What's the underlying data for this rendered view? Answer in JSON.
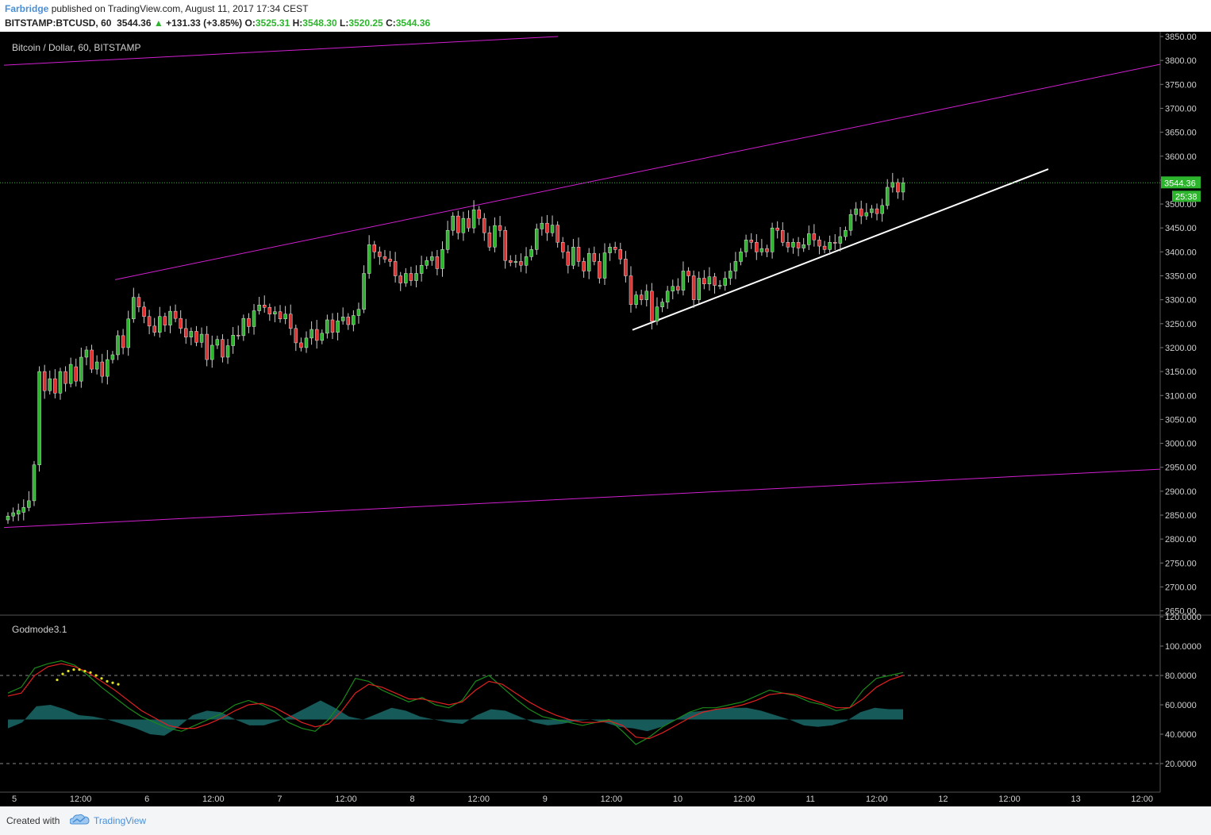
{
  "header": {
    "author": "Farbridge",
    "published": "published on TradingView.com, August 11, 2017 17:34 CEST",
    "symbol_line": "BITSTAMP:BTCUSD, 60",
    "last": "3544.36",
    "change_arrow": "▲",
    "change": "+131.33 (+3.85%)",
    "o_label": "O:",
    "o": "3525.31",
    "h_label": "H:",
    "h": "3548.30",
    "l_label": "L:",
    "l": "3520.25",
    "c_label": "C:",
    "c": "3544.36"
  },
  "footer": {
    "created": "Created with",
    "brand": "TradingView"
  },
  "colors": {
    "background": "#000000",
    "up": "#2db52d",
    "down": "#e03030",
    "channel": "#d020d0",
    "trendline": "#ffffff",
    "price_line": "#2db52d",
    "osc_green": "#1a8a1a",
    "osc_red": "#e02020",
    "osc_fill": "#1a6a6a",
    "dots": "#e0e020"
  },
  "chart_data": [
    {
      "type": "candlestick",
      "title": "Bitcoin / Dollar, 60, BITSTAMP",
      "ylim": [
        2650,
        3850
      ],
      "y_ticks": [
        "3850.00",
        "3800.00",
        "3750.00",
        "3700.00",
        "3650.00",
        "3600.00",
        "3550.00",
        "3500.00",
        "3450.00",
        "3400.00",
        "3350.00",
        "3300.00",
        "3250.00",
        "3200.00",
        "3150.00",
        "3100.00",
        "3050.00",
        "3000.00",
        "2950.00",
        "2900.00",
        "2850.00",
        "2800.00",
        "2750.00",
        "2700.00",
        "2650.00"
      ],
      "x_ticks": [
        "5",
        "12:00",
        "6",
        "12:00",
        "7",
        "12:00",
        "8",
        "12:00",
        "9",
        "12:00",
        "10",
        "12:00",
        "11",
        "12:00",
        "12",
        "12:00",
        "13",
        "12:00"
      ],
      "last_price_label": "3544.36",
      "countdown_label": "25:38",
      "last_price": 3544.36,
      "bars_hourly_open_close": [
        [
          2840,
          2848
        ],
        [
          2848,
          2855
        ],
        [
          2852,
          2860
        ],
        [
          2856,
          2866
        ],
        [
          2866,
          2880
        ],
        [
          2880,
          2955
        ],
        [
          2955,
          3150
        ],
        [
          3150,
          3110
        ],
        [
          3110,
          3135
        ],
        [
          3135,
          3105
        ],
        [
          3105,
          3150
        ],
        [
          3150,
          3125
        ],
        [
          3125,
          3165
        ],
        [
          3160,
          3130
        ],
        [
          3130,
          3180
        ],
        [
          3180,
          3195
        ],
        [
          3195,
          3155
        ],
        [
          3155,
          3170
        ],
        [
          3170,
          3140
        ],
        [
          3140,
          3175
        ],
        [
          3175,
          3185
        ],
        [
          3185,
          3225
        ],
        [
          3225,
          3200
        ],
        [
          3200,
          3260
        ],
        [
          3260,
          3305
        ],
        [
          3305,
          3285
        ],
        [
          3285,
          3265
        ],
        [
          3265,
          3245
        ],
        [
          3245,
          3232
        ],
        [
          3232,
          3265
        ],
        [
          3265,
          3247
        ],
        [
          3247,
          3276
        ],
        [
          3276,
          3261
        ],
        [
          3261,
          3240
        ],
        [
          3240,
          3222
        ],
        [
          3222,
          3234
        ],
        [
          3234,
          3211
        ],
        [
          3211,
          3228
        ],
        [
          3228,
          3175
        ],
        [
          3175,
          3205
        ],
        [
          3205,
          3217
        ],
        [
          3217,
          3180
        ],
        [
          3180,
          3204
        ],
        [
          3204,
          3226
        ],
        [
          3226,
          3225
        ],
        [
          3225,
          3261
        ],
        [
          3261,
          3244
        ],
        [
          3244,
          3277
        ],
        [
          3277,
          3289
        ],
        [
          3289,
          3284
        ],
        [
          3284,
          3270
        ],
        [
          3270,
          3275
        ],
        [
          3275,
          3260
        ],
        [
          3260,
          3270
        ],
        [
          3270,
          3240
        ],
        [
          3240,
          3210
        ],
        [
          3210,
          3200
        ],
        [
          3200,
          3220
        ],
        [
          3220,
          3238
        ],
        [
          3238,
          3215
        ],
        [
          3215,
          3230
        ],
        [
          3230,
          3258
        ],
        [
          3258,
          3232
        ],
        [
          3232,
          3256
        ],
        [
          3256,
          3264
        ],
        [
          3264,
          3248
        ],
        [
          3248,
          3267
        ],
        [
          3267,
          3280
        ],
        [
          3280,
          3355
        ],
        [
          3355,
          3415
        ],
        [
          3415,
          3400
        ],
        [
          3400,
          3390
        ],
        [
          3390,
          3385
        ],
        [
          3385,
          3380
        ],
        [
          3380,
          3350
        ],
        [
          3350,
          3335
        ],
        [
          3335,
          3355
        ],
        [
          3355,
          3340
        ],
        [
          3340,
          3355
        ],
        [
          3355,
          3372
        ],
        [
          3372,
          3382
        ],
        [
          3382,
          3390
        ],
        [
          3390,
          3365
        ],
        [
          3365,
          3405
        ],
        [
          3405,
          3445
        ],
        [
          3445,
          3475
        ],
        [
          3475,
          3440
        ],
        [
          3440,
          3470
        ],
        [
          3470,
          3450
        ],
        [
          3450,
          3488
        ],
        [
          3488,
          3470
        ],
        [
          3470,
          3440
        ],
        [
          3440,
          3410
        ],
        [
          3410,
          3455
        ],
        [
          3455,
          3445
        ],
        [
          3445,
          3382
        ],
        [
          3382,
          3378
        ],
        [
          3378,
          3380
        ],
        [
          3380,
          3372
        ],
        [
          3372,
          3390
        ],
        [
          3390,
          3405
        ],
        [
          3405,
          3448
        ],
        [
          3448,
          3460
        ],
        [
          3460,
          3440
        ],
        [
          3440,
          3456
        ],
        [
          3456,
          3420
        ],
        [
          3420,
          3400
        ],
        [
          3400,
          3372
        ],
        [
          3372,
          3410
        ],
        [
          3410,
          3380
        ],
        [
          3380,
          3360
        ],
        [
          3360,
          3397
        ],
        [
          3397,
          3380
        ],
        [
          3380,
          3345
        ],
        [
          3345,
          3398
        ],
        [
          3398,
          3410
        ],
        [
          3410,
          3405
        ],
        [
          3405,
          3385
        ],
        [
          3385,
          3350
        ],
        [
          3350,
          3290
        ],
        [
          3290,
          3310
        ],
        [
          3310,
          3300
        ],
        [
          3300,
          3318
        ],
        [
          3318,
          3255
        ],
        [
          3255,
          3285
        ],
        [
          3285,
          3295
        ],
        [
          3295,
          3318
        ],
        [
          3318,
          3328
        ],
        [
          3328,
          3320
        ],
        [
          3320,
          3360
        ],
        [
          3360,
          3350
        ],
        [
          3350,
          3300
        ],
        [
          3300,
          3345
        ],
        [
          3345,
          3333
        ],
        [
          3333,
          3348
        ],
        [
          3348,
          3330
        ],
        [
          3330,
          3330
        ],
        [
          3330,
          3345
        ],
        [
          3345,
          3360
        ],
        [
          3360,
          3380
        ],
        [
          3380,
          3400
        ],
        [
          3400,
          3425
        ],
        [
          3425,
          3420
        ],
        [
          3420,
          3400
        ],
        [
          3400,
          3407
        ],
        [
          3407,
          3400
        ],
        [
          3400,
          3450
        ],
        [
          3450,
          3445
        ],
        [
          3445,
          3420
        ],
        [
          3420,
          3410
        ],
        [
          3410,
          3420
        ],
        [
          3420,
          3408
        ],
        [
          3408,
          3415
        ],
        [
          3415,
          3438
        ],
        [
          3438,
          3425
        ],
        [
          3425,
          3412
        ],
        [
          3412,
          3405
        ],
        [
          3405,
          3420
        ],
        [
          3420,
          3418
        ],
        [
          3418,
          3432
        ],
        [
          3432,
          3445
        ],
        [
          3445,
          3478
        ],
        [
          3478,
          3490
        ],
        [
          3490,
          3475
        ],
        [
          3475,
          3482
        ],
        [
          3482,
          3490
        ],
        [
          3490,
          3480
        ],
        [
          3480,
          3497
        ],
        [
          3497,
          3535
        ],
        [
          3535,
          3545
        ],
        [
          3545,
          3525
        ],
        [
          3525,
          3544.36
        ]
      ],
      "annotations": [
        {
          "name": "channel-upper",
          "type": "line"
        },
        {
          "name": "channel-upper-outer",
          "type": "line"
        },
        {
          "name": "channel-lower",
          "type": "line"
        },
        {
          "name": "support-trendline",
          "type": "line"
        }
      ]
    },
    {
      "type": "line",
      "title": "Godmode3.1",
      "ylim": [
        0,
        120
      ],
      "y_ticks": [
        "120.0000",
        "100.0000",
        "80.0000",
        "60.0000",
        "40.0000",
        "20.0000"
      ],
      "levels": [
        80,
        20
      ],
      "series": [
        {
          "values": [
            68,
            72,
            85,
            88,
            90,
            87,
            80,
            72,
            65,
            58,
            52,
            48,
            44,
            42,
            46,
            50,
            54,
            60,
            63,
            60,
            55,
            48,
            44,
            42,
            50,
            62,
            78,
            76,
            70,
            66,
            62,
            65,
            60,
            58,
            63,
            76,
            80,
            72,
            64,
            57,
            52,
            50,
            48,
            46,
            48,
            50,
            42,
            33,
            38,
            45,
            50,
            55,
            58,
            58,
            60,
            62,
            66,
            70,
            68,
            66,
            62,
            60,
            56,
            58,
            70,
            78,
            80,
            82
          ]
        },
        {
          "values": [
            66,
            68,
            80,
            86,
            88,
            86,
            82,
            76,
            70,
            63,
            56,
            51,
            46,
            44,
            44,
            47,
            51,
            56,
            60,
            61,
            58,
            53,
            48,
            45,
            47,
            56,
            68,
            74,
            72,
            68,
            64,
            64,
            62,
            60,
            62,
            70,
            76,
            74,
            68,
            62,
            57,
            53,
            50,
            48,
            48,
            49,
            46,
            38,
            37,
            41,
            46,
            51,
            55,
            57,
            58,
            60,
            63,
            67,
            68,
            67,
            64,
            61,
            58,
            58,
            64,
            72,
            77,
            80
          ]
        },
        {
          "values": [
            44,
            48,
            59,
            60,
            57,
            53,
            52,
            50,
            47,
            44,
            40,
            39,
            45,
            53,
            56,
            55,
            50,
            46,
            46,
            49,
            53,
            58,
            63,
            58,
            52,
            50,
            54,
            58,
            56,
            52,
            50,
            48,
            47,
            53,
            57,
            56,
            52,
            48,
            46,
            47,
            49,
            50,
            48,
            45,
            44,
            42,
            45,
            50,
            55,
            56,
            57,
            58,
            58,
            56,
            53,
            50,
            46,
            45,
            46,
            49,
            55,
            58,
            57,
            57
          ]
        }
      ],
      "dots": [
        77,
        81,
        83,
        84,
        84,
        83,
        82,
        80,
        78,
        76,
        75,
        74
      ]
    }
  ]
}
